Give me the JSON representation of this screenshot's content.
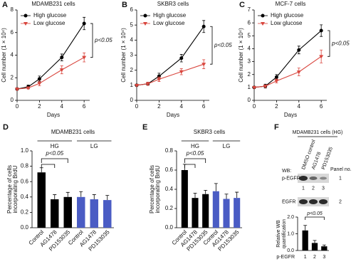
{
  "chart_data": [
    {
      "type": "line",
      "panel_label": "A",
      "title": "MDAMB231 cells",
      "xlabel": "Days",
      "ylabel": "Cell number (1 × 10⁴)",
      "x": [
        0,
        1,
        2,
        4,
        6
      ],
      "xlim": [
        0,
        6.5
      ],
      "xticks": [
        0,
        2,
        4,
        6
      ],
      "ylim": [
        0,
        8
      ],
      "yticks": [
        0,
        2,
        4,
        6,
        8
      ],
      "annotation": "p<0.05",
      "series": [
        {
          "name": "High glucose",
          "color": "#000000",
          "marker": "circle",
          "values": [
            1,
            1.2,
            1.9,
            3.8,
            6.8
          ],
          "errors": [
            0.1,
            0.15,
            0.25,
            0.3,
            0.55
          ]
        },
        {
          "name": "Low glucose",
          "color": "#d9463e",
          "marker": "triangle-down",
          "values": [
            1,
            1.1,
            1.5,
            2.7,
            3.8
          ],
          "errors": [
            0.1,
            0.1,
            0.2,
            0.35,
            0.4
          ]
        }
      ]
    },
    {
      "type": "line",
      "panel_label": "B",
      "title": "SKBR3 cells",
      "xlabel": "Days",
      "ylabel": "Cell number (1 × 10⁴)",
      "x": [
        0,
        1,
        2,
        4,
        6
      ],
      "xlim": [
        0,
        6.5
      ],
      "xticks": [
        0,
        2,
        4,
        6
      ],
      "ylim": [
        0,
        6
      ],
      "yticks": [
        0,
        1,
        2,
        3,
        4,
        5,
        6
      ],
      "annotation": "p<0.05",
      "series": [
        {
          "name": "High glucose",
          "color": "#000000",
          "marker": "circle",
          "values": [
            1,
            1.1,
            1.6,
            2.8,
            4.9
          ],
          "errors": [
            0.05,
            0.1,
            0.2,
            0.25,
            0.4
          ]
        },
        {
          "name": "Low glucose",
          "color": "#d9463e",
          "marker": "triangle-down",
          "values": [
            1,
            1.1,
            1.4,
            1.9,
            2.4
          ],
          "errors": [
            0.05,
            0.1,
            0.15,
            0.2,
            0.3
          ]
        }
      ]
    },
    {
      "type": "line",
      "panel_label": "C",
      "title": "MCF-7 cells",
      "xlabel": "Days",
      "ylabel": "Cell number (1 × 10⁴)",
      "x": [
        0,
        1,
        2,
        4,
        6
      ],
      "xlim": [
        0,
        6.5
      ],
      "xticks": [
        0,
        2,
        4,
        6
      ],
      "ylim": [
        0,
        7
      ],
      "yticks": [
        0,
        1,
        2,
        3,
        4,
        5,
        6,
        7
      ],
      "annotation": "p<0.05",
      "series": [
        {
          "name": "High glucose",
          "color": "#000000",
          "marker": "circle",
          "values": [
            1,
            1.1,
            1.8,
            3.9,
            5.4
          ],
          "errors": [
            0.05,
            0.15,
            0.2,
            0.3,
            0.45
          ]
        },
        {
          "name": "Low glucose",
          "color": "#d9463e",
          "marker": "triangle-down",
          "values": [
            1,
            1.1,
            1.5,
            2.2,
            3.4
          ],
          "errors": [
            0.05,
            0.1,
            0.15,
            0.3,
            0.5
          ]
        }
      ]
    },
    {
      "type": "bar",
      "panel_label": "D",
      "title": "MDAMB231 cells",
      "ylabel": [
        "Percentage of cells",
        "incorporating BrdU"
      ],
      "categories": [
        "Control",
        "AG1478",
        "PD153035",
        "Control",
        "AG1478",
        "PD153035"
      ],
      "values": [
        0.72,
        0.37,
        0.4,
        0.4,
        0.37,
        0.36
      ],
      "errors": [
        0.06,
        0.06,
        0.06,
        0.07,
        0.06,
        0.06
      ],
      "colors": [
        "#000000",
        "#000000",
        "#000000",
        "#4a5cc4",
        "#4a5cc4",
        "#4a5cc4"
      ],
      "groups": [
        "HG",
        "LG"
      ],
      "annotation": "p<0.05",
      "ylim": [
        0,
        1
      ],
      "yticks": [
        {
          "value": 0,
          "label": "0.0"
        },
        0.2,
        0.4,
        0.6,
        0.8,
        {
          "value": 1,
          "label": "1.0"
        }
      ]
    },
    {
      "type": "bar",
      "panel_label": "E",
      "title": "SKBR3 cells",
      "ylabel": [
        "Percentage of cells",
        "incorporating BrdU"
      ],
      "categories": [
        "Control",
        "AG1478",
        "PD153035",
        "Control",
        "AG1478",
        "PD153035"
      ],
      "values": [
        0.6,
        0.31,
        0.35,
        0.38,
        0.3,
        0.31
      ],
      "errors": [
        0.06,
        0.05,
        0.04,
        0.08,
        0.05,
        0.06
      ],
      "colors": [
        "#000000",
        "#000000",
        "#000000",
        "#4a5cc4",
        "#4a5cc4",
        "#4a5cc4"
      ],
      "groups": [
        "HG",
        "LG"
      ],
      "annotation": "p<0.05",
      "ylim": [
        0,
        0.8
      ],
      "yticks": [
        {
          "value": 0,
          "label": "0.0"
        },
        0.2,
        0.4,
        0.6,
        0.8
      ]
    },
    {
      "type": "bar",
      "panel_label": "F",
      "ylabel": [
        "Relative WB",
        "quantification"
      ],
      "xlabel": "p-EGFR",
      "categories": [
        "1",
        "2",
        "3"
      ],
      "values": [
        1.2,
        0.45,
        0.25
      ],
      "errors": [
        0.3,
        0.15,
        0.08
      ],
      "colors": [
        "#000000",
        "#000000",
        "#000000"
      ],
      "annotation": "p<0.05",
      "ylim": [
        0,
        2
      ],
      "yticks": [
        {
          "value": 0,
          "label": "0.0"
        },
        {
          "value": 1,
          "label": "1.0"
        },
        {
          "value": 2,
          "label": "2.0"
        }
      ],
      "blot": {
        "title": "MDAMB231 cells (HG)",
        "lanes": [
          "DMSO control",
          "AG1478",
          "PD153035"
        ],
        "panel_no_label": "Panel no.",
        "wb_label": "WB:",
        "rows": [
          {
            "label": "p-EGFR",
            "lane_numbers": [
              "1",
              "2",
              "3"
            ],
            "panel_no": "1"
          },
          {
            "label": "EGFR",
            "panel_no": "2"
          }
        ]
      }
    }
  ]
}
